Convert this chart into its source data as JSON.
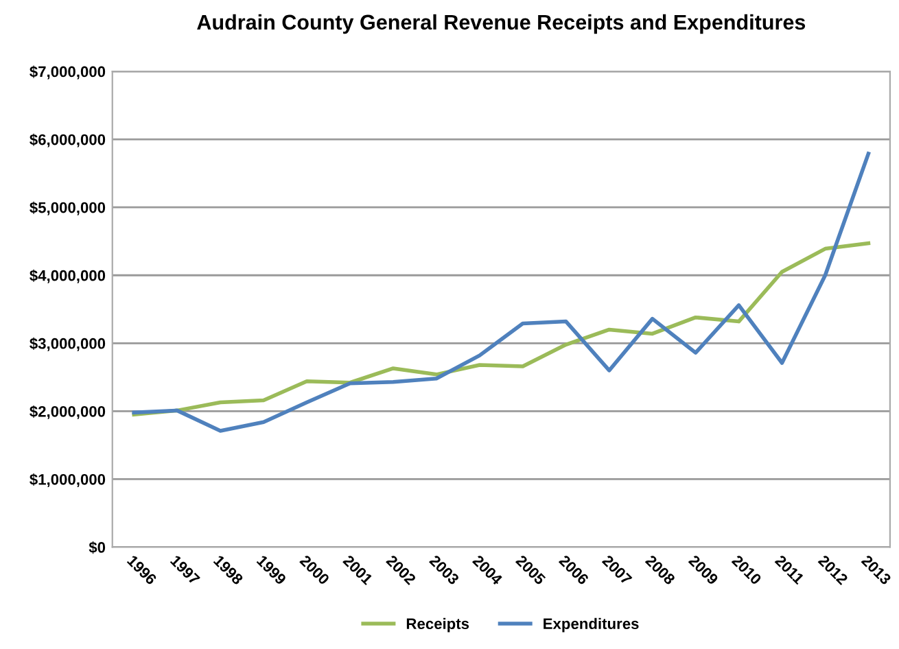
{
  "chart_data": {
    "type": "line",
    "title": "Audrain County General Revenue Receipts and Expenditures",
    "categories": [
      "1996",
      "1997",
      "1998",
      "1999",
      "2000",
      "2001",
      "2002",
      "2003",
      "2004",
      "2005",
      "2006",
      "2007",
      "2008",
      "2009",
      "2010",
      "2011",
      "2012",
      "2013"
    ],
    "series": [
      {
        "name": "Receipts",
        "color": "#9bbb59",
        "values": [
          1950000,
          2010000,
          2130000,
          2160000,
          2440000,
          2420000,
          2630000,
          2540000,
          2680000,
          2660000,
          2980000,
          3200000,
          3140000,
          3380000,
          3320000,
          4050000,
          4390000,
          4470000
        ]
      },
      {
        "name": "Expenditures",
        "color": "#4f81bd",
        "values": [
          1980000,
          2010000,
          1710000,
          1840000,
          2130000,
          2410000,
          2430000,
          2480000,
          2820000,
          3290000,
          3320000,
          2600000,
          3360000,
          2860000,
          3560000,
          2710000,
          4000000,
          5790000
        ]
      }
    ],
    "ylim": [
      0,
      7000000
    ],
    "yticks": [
      {
        "value": 0,
        "label": "$0"
      },
      {
        "value": 1000000,
        "label": "$1,000,000"
      },
      {
        "value": 2000000,
        "label": "$2,000,000"
      },
      {
        "value": 3000000,
        "label": "$3,000,000"
      },
      {
        "value": 4000000,
        "label": "$4,000,000"
      },
      {
        "value": 5000000,
        "label": "$5,000,000"
      },
      {
        "value": 6000000,
        "label": "$6,000,000"
      },
      {
        "value": 7000000,
        "label": "$7,000,000"
      }
    ],
    "grid": "y",
    "legend": "bottom",
    "marker": "none",
    "line_style": "solid"
  }
}
